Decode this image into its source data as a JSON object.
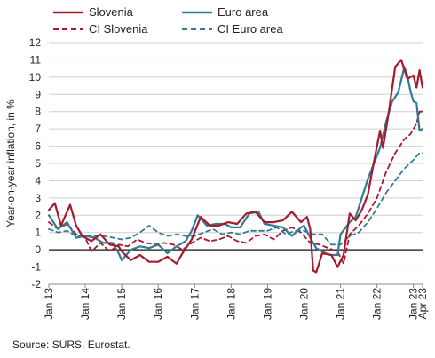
{
  "chart_data": {
    "type": "line",
    "ylabel": "Year-on-year inflation, in %",
    "ylim": [
      -2,
      12
    ],
    "yticks": [
      -2,
      -1,
      0,
      1,
      2,
      3,
      4,
      5,
      6,
      7,
      8,
      9,
      10,
      11,
      12
    ],
    "x_range": [
      "2013-01",
      "2023-04"
    ],
    "x_ticks": [
      "Jan 13",
      "Jan 14",
      "Jan 15",
      "Jan 16",
      "Jan 17",
      "Jan 18",
      "Jan 19",
      "Jan 20",
      "Jan 21",
      "Jan 22",
      "Jan 23",
      "Apr 23"
    ],
    "grid": true,
    "legend_position": "top",
    "series": [
      {
        "name": "Slovenia",
        "color": "#a6192e",
        "dash": false,
        "points": [
          [
            "2013-01",
            2.3
          ],
          [
            "2013-03",
            2.7
          ],
          [
            "2013-05",
            1.4
          ],
          [
            "2013-07",
            2.2
          ],
          [
            "2013-08",
            2.6
          ],
          [
            "2013-10",
            1.4
          ],
          [
            "2013-12",
            0.8
          ],
          [
            "2014-03",
            0.5
          ],
          [
            "2014-06",
            0.9
          ],
          [
            "2014-09",
            0.3
          ],
          [
            "2014-12",
            0.2
          ],
          [
            "2015-01",
            -0.1
          ],
          [
            "2015-04",
            -0.6
          ],
          [
            "2015-07",
            -0.3
          ],
          [
            "2015-10",
            -0.7
          ],
          [
            "2016-01",
            -0.7
          ],
          [
            "2016-04",
            -0.4
          ],
          [
            "2016-07",
            -0.8
          ],
          [
            "2016-09",
            -0.2
          ],
          [
            "2016-12",
            0.6
          ],
          [
            "2017-03",
            1.9
          ],
          [
            "2017-06",
            1.4
          ],
          [
            "2017-09",
            1.4
          ],
          [
            "2017-12",
            1.6
          ],
          [
            "2018-03",
            1.5
          ],
          [
            "2018-06",
            2.1
          ],
          [
            "2018-09",
            2.2
          ],
          [
            "2018-12",
            1.6
          ],
          [
            "2019-03",
            1.6
          ],
          [
            "2019-06",
            1.7
          ],
          [
            "2019-09",
            2.2
          ],
          [
            "2019-12",
            1.6
          ],
          [
            "2020-02",
            1.9
          ],
          [
            "2020-03",
            1.2
          ],
          [
            "2020-04",
            -1.2
          ],
          [
            "2020-05",
            -1.3
          ],
          [
            "2020-07",
            -0.2
          ],
          [
            "2020-10",
            -0.3
          ],
          [
            "2020-12",
            -1.0
          ],
          [
            "2021-02",
            -0.3
          ],
          [
            "2021-04",
            2.1
          ],
          [
            "2021-06",
            1.7
          ],
          [
            "2021-08",
            2.3
          ],
          [
            "2021-10",
            3.2
          ],
          [
            "2021-12",
            5.1
          ],
          [
            "2022-02",
            6.9
          ],
          [
            "2022-03",
            5.9
          ],
          [
            "2022-05",
            8.1
          ],
          [
            "2022-07",
            10.6
          ],
          [
            "2022-09",
            11.0
          ],
          [
            "2022-11",
            9.9
          ],
          [
            "2023-01",
            10.1
          ],
          [
            "2023-02",
            9.4
          ],
          [
            "2023-03",
            10.4
          ],
          [
            "2023-04",
            9.4
          ]
        ]
      },
      {
        "name": "Euro area",
        "color": "#2f7d94",
        "dash": false,
        "points": [
          [
            "2013-01",
            2.0
          ],
          [
            "2013-04",
            1.2
          ],
          [
            "2013-07",
            1.6
          ],
          [
            "2013-10",
            0.7
          ],
          [
            "2014-01",
            0.8
          ],
          [
            "2014-04",
            0.7
          ],
          [
            "2014-07",
            0.4
          ],
          [
            "2014-10",
            0.4
          ],
          [
            "2014-12",
            -0.2
          ],
          [
            "2015-01",
            -0.6
          ],
          [
            "2015-04",
            0.0
          ],
          [
            "2015-07",
            0.2
          ],
          [
            "2015-10",
            0.1
          ],
          [
            "2016-01",
            0.3
          ],
          [
            "2016-04",
            -0.2
          ],
          [
            "2016-07",
            0.2
          ],
          [
            "2016-10",
            0.5
          ],
          [
            "2016-12",
            1.1
          ],
          [
            "2017-02",
            2.0
          ],
          [
            "2017-05",
            1.4
          ],
          [
            "2017-08",
            1.5
          ],
          [
            "2017-11",
            1.5
          ],
          [
            "2018-01",
            1.3
          ],
          [
            "2018-04",
            1.3
          ],
          [
            "2018-07",
            2.1
          ],
          [
            "2018-10",
            2.2
          ],
          [
            "2018-12",
            1.5
          ],
          [
            "2019-03",
            1.4
          ],
          [
            "2019-06",
            1.3
          ],
          [
            "2019-09",
            0.8
          ],
          [
            "2019-12",
            1.3
          ],
          [
            "2020-01",
            1.4
          ],
          [
            "2020-03",
            0.7
          ],
          [
            "2020-05",
            0.1
          ],
          [
            "2020-08",
            -0.2
          ],
          [
            "2020-10",
            -0.3
          ],
          [
            "2020-12",
            -0.3
          ],
          [
            "2021-01",
            0.9
          ],
          [
            "2021-04",
            1.6
          ],
          [
            "2021-06",
            1.9
          ],
          [
            "2021-08",
            3.0
          ],
          [
            "2021-10",
            4.1
          ],
          [
            "2021-12",
            5.0
          ],
          [
            "2022-02",
            5.9
          ],
          [
            "2022-04",
            7.4
          ],
          [
            "2022-06",
            8.6
          ],
          [
            "2022-08",
            9.1
          ],
          [
            "2022-10",
            10.6
          ],
          [
            "2022-11",
            10.1
          ],
          [
            "2022-12",
            9.2
          ],
          [
            "2023-01",
            8.6
          ],
          [
            "2023-02",
            8.5
          ],
          [
            "2023-03",
            6.9
          ],
          [
            "2023-04",
            7.0
          ]
        ]
      },
      {
        "name": "CI Slovenia",
        "color": "#a6192e",
        "dash": true,
        "points": [
          [
            "2013-01",
            1.6
          ],
          [
            "2013-04",
            1.2
          ],
          [
            "2013-07",
            1.5
          ],
          [
            "2013-10",
            0.9
          ],
          [
            "2014-01",
            0.7
          ],
          [
            "2014-03",
            -0.1
          ],
          [
            "2014-06",
            0.4
          ],
          [
            "2014-09",
            -0.1
          ],
          [
            "2014-12",
            0.3
          ],
          [
            "2015-03",
            0.2
          ],
          [
            "2015-06",
            0.6
          ],
          [
            "2015-09",
            0.4
          ],
          [
            "2015-12",
            0.3
          ],
          [
            "2016-03",
            0.4
          ],
          [
            "2016-06",
            0.3
          ],
          [
            "2016-09",
            0.0
          ],
          [
            "2016-12",
            0.4
          ],
          [
            "2017-03",
            0.7
          ],
          [
            "2017-06",
            0.5
          ],
          [
            "2017-09",
            0.6
          ],
          [
            "2017-12",
            0.8
          ],
          [
            "2018-03",
            0.5
          ],
          [
            "2018-06",
            0.4
          ],
          [
            "2018-09",
            0.8
          ],
          [
            "2018-12",
            0.9
          ],
          [
            "2019-03",
            0.6
          ],
          [
            "2019-06",
            1.1
          ],
          [
            "2019-09",
            1.3
          ],
          [
            "2019-12",
            1.0
          ],
          [
            "2020-03",
            0.4
          ],
          [
            "2020-06",
            0.3
          ],
          [
            "2020-09",
            0.1
          ],
          [
            "2020-12",
            -0.1
          ],
          [
            "2021-02",
            -0.8
          ],
          [
            "2021-04",
            0.9
          ],
          [
            "2021-07",
            1.4
          ],
          [
            "2021-10",
            2.1
          ],
          [
            "2022-01",
            3.0
          ],
          [
            "2022-04",
            4.5
          ],
          [
            "2022-07",
            5.6
          ],
          [
            "2022-10",
            6.4
          ],
          [
            "2022-12",
            6.7
          ],
          [
            "2023-02",
            7.3
          ],
          [
            "2023-03",
            8.0
          ],
          [
            "2023-04",
            8.0
          ]
        ]
      },
      {
        "name": "CI Euro area",
        "color": "#2f7d94",
        "dash": true,
        "points": [
          [
            "2013-01",
            1.2
          ],
          [
            "2013-04",
            1.0
          ],
          [
            "2013-07",
            1.1
          ],
          [
            "2013-10",
            0.8
          ],
          [
            "2014-01",
            0.8
          ],
          [
            "2014-04",
            0.8
          ],
          [
            "2014-07",
            0.8
          ],
          [
            "2014-10",
            0.7
          ],
          [
            "2015-01",
            0.6
          ],
          [
            "2015-04",
            0.7
          ],
          [
            "2015-07",
            1.0
          ],
          [
            "2015-10",
            1.4
          ],
          [
            "2016-01",
            1.0
          ],
          [
            "2016-04",
            0.8
          ],
          [
            "2016-07",
            0.9
          ],
          [
            "2016-10",
            0.8
          ],
          [
            "2017-01",
            0.8
          ],
          [
            "2017-04",
            1.0
          ],
          [
            "2017-07",
            1.2
          ],
          [
            "2017-10",
            0.9
          ],
          [
            "2018-01",
            1.0
          ],
          [
            "2018-04",
            0.9
          ],
          [
            "2018-07",
            1.1
          ],
          [
            "2018-10",
            1.1
          ],
          [
            "2019-01",
            1.1
          ],
          [
            "2019-04",
            1.3
          ],
          [
            "2019-07",
            0.9
          ],
          [
            "2019-10",
            1.1
          ],
          [
            "2020-01",
            1.1
          ],
          [
            "2020-04",
            0.9
          ],
          [
            "2020-07",
            0.9
          ],
          [
            "2020-10",
            0.3
          ],
          [
            "2021-01",
            0.3
          ],
          [
            "2021-04",
            0.8
          ],
          [
            "2021-07",
            1.0
          ],
          [
            "2021-10",
            1.6
          ],
          [
            "2022-01",
            2.4
          ],
          [
            "2022-04",
            3.3
          ],
          [
            "2022-07",
            4.0
          ],
          [
            "2022-10",
            4.7
          ],
          [
            "2023-01",
            5.2
          ],
          [
            "2023-03",
            5.6
          ],
          [
            "2023-04",
            5.6
          ]
        ]
      }
    ]
  },
  "legend": [
    {
      "label": "Slovenia"
    },
    {
      "label": "Euro area"
    },
    {
      "label": "CI Slovenia"
    },
    {
      "label": "CI Euro area"
    }
  ],
  "source_text": "Source: SURS, Eurostat."
}
